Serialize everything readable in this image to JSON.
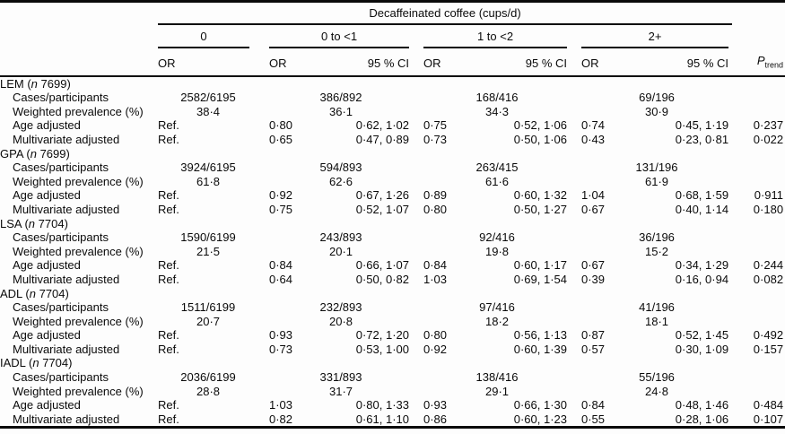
{
  "table": {
    "spanner": "Decaffeinated coffee (cups/d)",
    "groups": [
      {
        "label": "0",
        "sub": [
          "OR"
        ]
      },
      {
        "label": "0 to <1",
        "sub": [
          "OR",
          "95 % CI"
        ]
      },
      {
        "label": "1 to <2",
        "sub": [
          "OR",
          "95 % CI"
        ]
      },
      {
        "label": "2+",
        "sub": [
          "OR",
          "95 % CI"
        ]
      }
    ],
    "ptrend": {
      "base": "P",
      "sub": "trend"
    },
    "sections": [
      {
        "label_pre": "LEM (",
        "label_n": "n",
        "label_post": " 7699)",
        "rows": [
          {
            "label": "Cases/participants",
            "values": [
              "2582/6195",
              "386/892",
              "168/416",
              "69/196"
            ]
          },
          {
            "label": "Weighted prevalence (%)",
            "values": [
              "38·4",
              "36·1",
              "34·3",
              "30·9"
            ]
          },
          {
            "label": "Age adjusted",
            "values": [
              "Ref.",
              "0·80",
              "0·62, 1·02",
              "0·75",
              "0·52, 1·06",
              "0·74",
              "0·45, 1·19",
              "0·237"
            ]
          },
          {
            "label": "Multivariate adjusted",
            "values": [
              "Ref.",
              "0·65",
              "0·47, 0·89",
              "0·73",
              "0·50, 1·06",
              "0·43",
              "0·23, 0·81",
              "0·022"
            ]
          }
        ]
      },
      {
        "label_pre": "GPA (",
        "label_n": "n",
        "label_post": " 7699)",
        "rows": [
          {
            "label": "Cases/participants",
            "values": [
              "3924/6195",
              "594/893",
              "263/415",
              "131/196"
            ]
          },
          {
            "label": "Weighted prevalence (%)",
            "values": [
              "61·8",
              "62·6",
              "61·6",
              "61·9"
            ]
          },
          {
            "label": "Age adjusted",
            "values": [
              "Ref.",
              "0·92",
              "0·67, 1·26",
              "0·89",
              "0·60, 1·32",
              "1·04",
              "0·68, 1·59",
              "0·911"
            ]
          },
          {
            "label": "Multivariate adjusted",
            "values": [
              "Ref.",
              "0·75",
              "0·52, 1·07",
              "0·80",
              "0·50, 1·27",
              "0·67",
              "0·40, 1·14",
              "0·180"
            ]
          }
        ]
      },
      {
        "label_pre": "LSA (",
        "label_n": "n",
        "label_post": " 7704)",
        "rows": [
          {
            "label": "Cases/participants",
            "values": [
              "1590/6199",
              "243/893",
              "92/416",
              "36/196"
            ]
          },
          {
            "label": "Weighted prevalence (%)",
            "values": [
              "21·5",
              "20·1",
              "19·8",
              "15·2"
            ]
          },
          {
            "label": "Age adjusted",
            "values": [
              "Ref.",
              "0·84",
              "0·66, 1·07",
              "0·84",
              "0·60, 1·17",
              "0·67",
              "0·34, 1·29",
              "0·244"
            ]
          },
          {
            "label": "Multivariate adjusted",
            "values": [
              "Ref.",
              "0·64",
              "0·50, 0·82",
              "1·03",
              "0·69, 1·54",
              "0·39",
              "0·16, 0·94",
              "0·082"
            ]
          }
        ]
      },
      {
        "label_pre": "ADL (",
        "label_n": "n",
        "label_post": " 7704)",
        "rows": [
          {
            "label": "Cases/participants",
            "values": [
              "1511/6199",
              "232/893",
              "97/416",
              "41/196"
            ]
          },
          {
            "label": "Weighted prevalence (%)",
            "values": [
              "20·7",
              "20·8",
              "18·2",
              "18·1"
            ]
          },
          {
            "label": "Age adjusted",
            "values": [
              "Ref.",
              "0·93",
              "0·72, 1·20",
              "0·80",
              "0·56, 1·13",
              "0·87",
              "0·52, 1·45",
              "0·492"
            ]
          },
          {
            "label": "Multivariate adjusted",
            "values": [
              "Ref.",
              "0·73",
              "0·53, 1·00",
              "0·92",
              "0·60, 1·39",
              "0·57",
              "0·30, 1·09",
              "0·157"
            ]
          }
        ]
      },
      {
        "label_pre": "IADL (",
        "label_n": "n",
        "label_post": " 7704)",
        "rows": [
          {
            "label": "Cases/participants",
            "values": [
              "2036/6199",
              "331/893",
              "138/416",
              "55/196"
            ]
          },
          {
            "label": "Weighted prevalence (%)",
            "values": [
              "28·8",
              "31·7",
              "29·1",
              "24·8"
            ]
          },
          {
            "label": "Age adjusted",
            "values": [
              "Ref.",
              "1·03",
              "0·80, 1·33",
              "0·93",
              "0·66, 1·30",
              "0·84",
              "0·48, 1·46",
              "0·484"
            ]
          },
          {
            "label": "Multivariate adjusted",
            "values": [
              "Ref.",
              "0·82",
              "0·61, 1·10",
              "0·86",
              "0·60, 1·23",
              "0·55",
              "0·28, 1·06",
              "0·107"
            ]
          }
        ]
      }
    ]
  }
}
